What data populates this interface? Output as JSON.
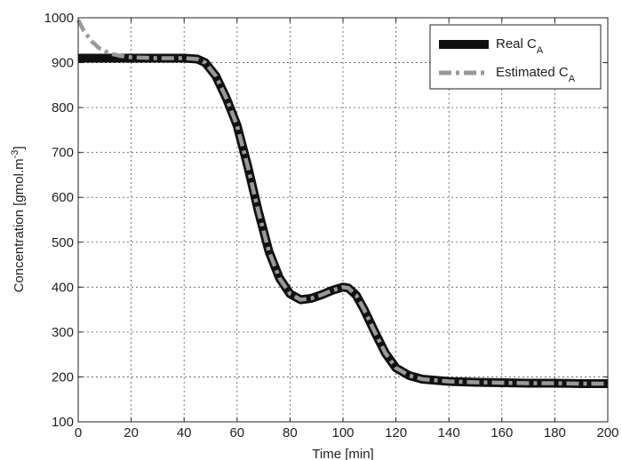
{
  "chart_data": {
    "type": "line",
    "title": "",
    "xlabel": "Time [min]",
    "ylabel": "Concentration [gmol.m",
    "ylabel_sup": "-3",
    "ylabel_close": "]",
    "xlim": [
      0,
      200
    ],
    "ylim": [
      100,
      1000
    ],
    "xticks": [
      0,
      20,
      40,
      60,
      80,
      100,
      120,
      140,
      160,
      180,
      200
    ],
    "yticks": [
      100,
      200,
      300,
      400,
      500,
      600,
      700,
      800,
      900,
      1000
    ],
    "grid": true,
    "legend_position": "top-right",
    "series": [
      {
        "name": "Real C",
        "name_sub": "A",
        "color": "#111111",
        "style": "solid-thick",
        "x": [
          0,
          10,
          20,
          30,
          40,
          45,
          48,
          52,
          56,
          60,
          64,
          68,
          72,
          76,
          80,
          84,
          88,
          92,
          96,
          100,
          102,
          105,
          108,
          112,
          116,
          120,
          125,
          130,
          140,
          150,
          160,
          170,
          180,
          190,
          200
        ],
        "y": [
          910,
          910,
          910,
          910,
          910,
          908,
          900,
          870,
          820,
          760,
          670,
          570,
          480,
          420,
          385,
          372,
          375,
          383,
          393,
          400,
          398,
          382,
          350,
          300,
          253,
          220,
          203,
          195,
          190,
          188,
          187,
          186,
          186,
          185,
          185
        ]
      },
      {
        "name": "Estimated C",
        "name_sub": "A",
        "color": "#999999",
        "style": "dash-dot",
        "x": [
          0,
          2,
          5,
          8,
          12,
          16,
          20,
          30,
          40,
          45,
          48,
          52,
          56,
          60,
          64,
          68,
          72,
          76,
          80,
          84,
          88,
          92,
          96,
          100,
          102,
          105,
          108,
          112,
          116,
          120,
          125,
          130,
          140,
          150,
          160,
          170,
          180,
          190,
          200
        ],
        "y": [
          995,
          972,
          948,
          932,
          920,
          915,
          912,
          910,
          910,
          908,
          900,
          870,
          820,
          760,
          670,
          570,
          480,
          420,
          385,
          372,
          375,
          383,
          393,
          400,
          398,
          382,
          350,
          300,
          253,
          220,
          203,
          195,
          190,
          188,
          187,
          186,
          186,
          185,
          185
        ]
      }
    ]
  }
}
